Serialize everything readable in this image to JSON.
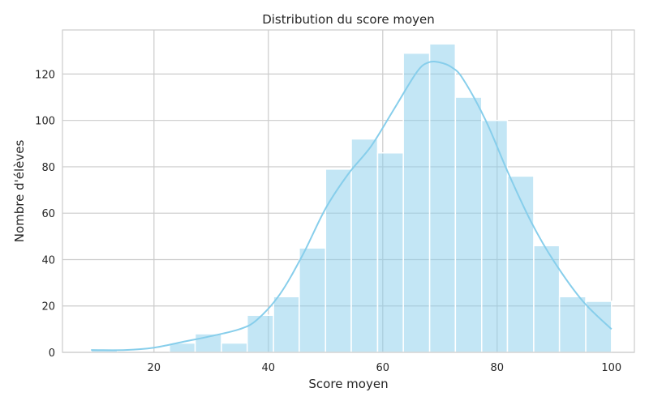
{
  "chart_data": {
    "type": "bar",
    "subtype": "histogram-with-kde",
    "title": "Distribution du score moyen",
    "xlabel": "Score moyen",
    "ylabel": "Nombre d'élèves",
    "xlim": [
      4,
      104
    ],
    "ylim": [
      0,
      139
    ],
    "xticks": [
      20,
      40,
      60,
      80,
      100
    ],
    "yticks": [
      0,
      20,
      40,
      60,
      80,
      100,
      120
    ],
    "grid": true,
    "bin_edges": [
      9,
      13.6,
      18.1,
      22.7,
      27.2,
      31.8,
      36.3,
      40.9,
      45.4,
      50,
      54.5,
      59.1,
      63.6,
      68.2,
      72.7,
      77.3,
      81.8,
      86.4,
      90.9,
      95.5,
      100
    ],
    "values": [
      1,
      0,
      0,
      4,
      8,
      4,
      16,
      24,
      45,
      79,
      92,
      86,
      129,
      133,
      110,
      100,
      76,
      46,
      24,
      22
    ],
    "kde": {
      "x": [
        9,
        15,
        20,
        25,
        30,
        35,
        38,
        42,
        46,
        50,
        54,
        58,
        62,
        66,
        68,
        70,
        72,
        74,
        78,
        82,
        86,
        90,
        95,
        100
      ],
      "y": [
        1,
        1,
        2,
        4.5,
        7,
        10,
        14,
        25,
        42,
        62,
        77,
        89,
        105,
        121,
        125,
        125,
        123,
        118,
        100,
        77,
        56,
        39,
        22,
        10
      ]
    },
    "colors": {
      "bar_fill": "#87ceeb",
      "bar_opacity": 0.5,
      "kde_line": "#87ceeb",
      "grid": "#cccccc",
      "frame": "#cccccc",
      "background": "#ffffff"
    }
  }
}
